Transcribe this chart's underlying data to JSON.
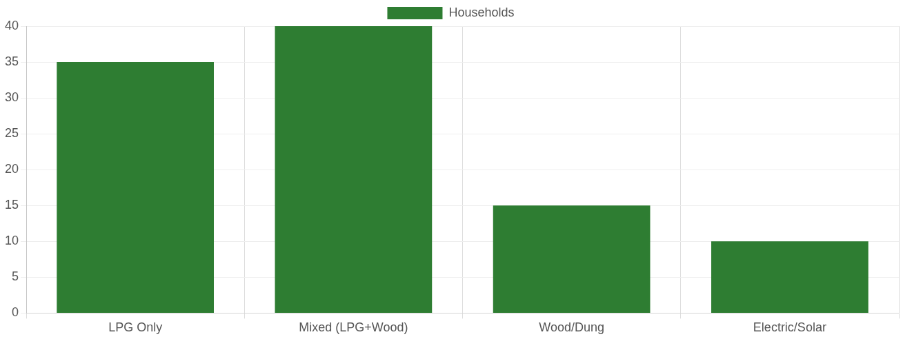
{
  "chart_data": {
    "type": "bar",
    "categories": [
      "LPG Only",
      "Mixed (LPG+Wood)",
      "Wood/Dung",
      "Electric/Solar"
    ],
    "series": [
      {
        "name": "Households",
        "color": "#2e7d32",
        "values": [
          35,
          40,
          15,
          10
        ]
      }
    ],
    "ylim": [
      0,
      40
    ],
    "yticks": [
      0,
      5,
      10,
      15,
      20,
      25,
      30,
      35,
      40
    ],
    "grid": true,
    "legend": "top"
  }
}
